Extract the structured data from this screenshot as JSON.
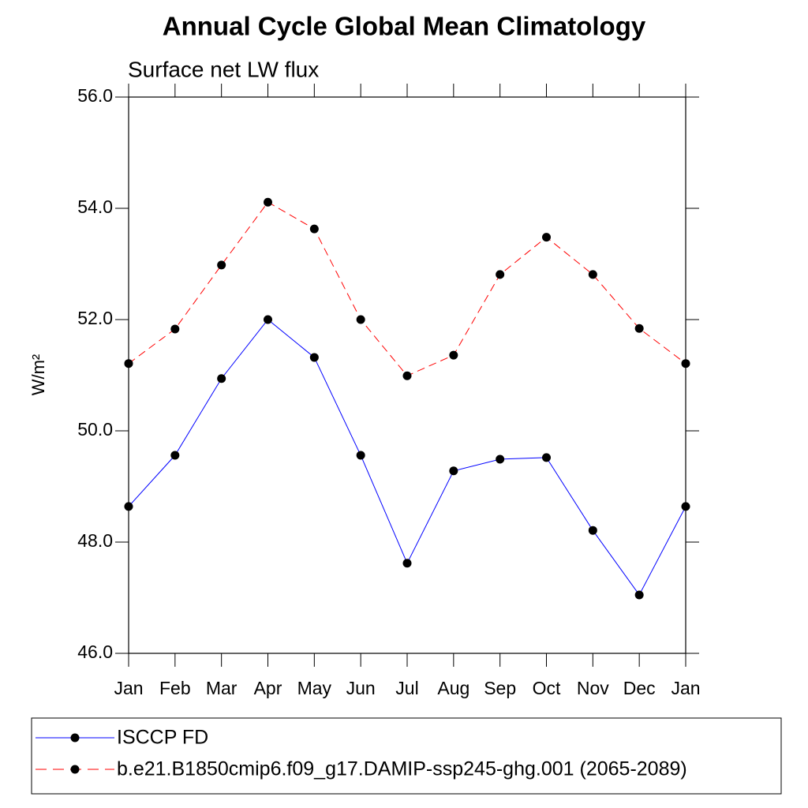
{
  "chart_data": {
    "type": "line",
    "title": "Annual Cycle Global Mean Climatology",
    "subtitle": "Surface net LW flux",
    "ylabel": "W/m²",
    "categories": [
      "Jan",
      "Feb",
      "Mar",
      "Apr",
      "May",
      "Jun",
      "Jul",
      "Aug",
      "Sep",
      "Oct",
      "Nov",
      "Dec",
      "Jan"
    ],
    "series": [
      {
        "name": "ISCCP FD",
        "color": "#0000ff",
        "dashed": false,
        "values": [
          48.64,
          49.56,
          50.94,
          52.0,
          51.32,
          49.56,
          47.62,
          49.28,
          49.49,
          49.52,
          48.21,
          47.05,
          48.64
        ]
      },
      {
        "name": "b.e21.B1850cmip6.f09_g17.DAMIP-ssp245-ghg.001 (2065-2089)",
        "color": "#ff0000",
        "dashed": true,
        "values": [
          51.21,
          51.83,
          52.98,
          54.11,
          53.63,
          52.0,
          50.99,
          51.36,
          52.81,
          53.48,
          52.81,
          51.84,
          51.21
        ]
      }
    ],
    "ylim": [
      46,
      56
    ],
    "yticks": [
      {
        "value": 46,
        "label": "46.0"
      },
      {
        "value": 48,
        "label": "48.0"
      },
      {
        "value": 50,
        "label": "50.0"
      },
      {
        "value": 52,
        "label": "52.0"
      },
      {
        "value": 54,
        "label": "54.0"
      },
      {
        "value": 56,
        "label": "56.0"
      }
    ],
    "legend": "bottom",
    "marker_color": "#000000"
  }
}
